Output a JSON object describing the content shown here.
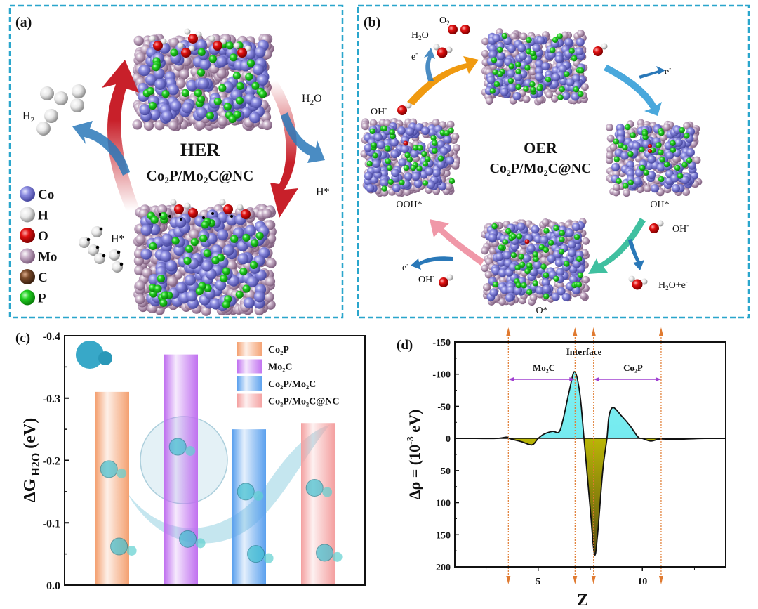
{
  "panel_a": {
    "label": "(a)",
    "title": "HER",
    "catalyst": [
      "Co",
      "2",
      "P/Mo",
      "2",
      "C@NC"
    ],
    "h2_label": [
      "H",
      "2"
    ],
    "h2o_label": [
      "H",
      "2",
      "O"
    ],
    "h_star_right": "H*",
    "h_star_left": "H*",
    "legend": [
      {
        "label": "Co",
        "color": "#7f7fd6"
      },
      {
        "label": "H",
        "color": "#e8e8e8"
      },
      {
        "label": "O",
        "color": "#e01010"
      },
      {
        "label": "Mo",
        "color": "#b8a0b8"
      },
      {
        "label": "C",
        "color": "#7a4a2a"
      },
      {
        "label": "P",
        "color": "#22d022"
      }
    ]
  },
  "panel_b": {
    "label": "(b)",
    "title": "OER",
    "catalyst": [
      "Co",
      "2",
      "P/Mo",
      "2",
      "C@NC"
    ],
    "o2_label": [
      "O",
      "2"
    ],
    "h2o_label": [
      "H",
      "2",
      "O"
    ],
    "states": {
      "ooh": "OOH*",
      "oh": "OH*",
      "o": "O*"
    },
    "e_label": [
      "e",
      "-"
    ],
    "oh_minus": [
      "OH",
      "-"
    ],
    "h2o_e": [
      "H",
      "2",
      "O+e",
      "-"
    ]
  },
  "colors": {
    "frame": "#2aa6cc",
    "co": "#7f7fd6",
    "p": "#22d022",
    "mo": "#b8a0b8",
    "o": "#e01010",
    "red_arrow": "#c8202a",
    "blue_arrow": "#2a78b8",
    "orange_arrow": "#f09a10"
  },
  "chart_data": [
    {
      "panel": "(c)",
      "type": "bar",
      "ylabel": [
        "ΔG",
        " H2O",
        " (eV)"
      ],
      "categories": [
        "Co2P",
        "Mo2C",
        "Co2P/Mo2C",
        "Co2P/Mo2C@NC"
      ],
      "legend_labels": [
        "Co₂P",
        "Mo₂C",
        "Co₂P/Mo₂C",
        "Co₂P/Mo₂C@NC"
      ],
      "values": [
        -0.31,
        -0.37,
        -0.25,
        -0.26
      ],
      "colors": [
        "#f4a070",
        "#c070f0",
        "#5aa0ee",
        "#f4a0a0"
      ],
      "ylim": [
        0.0,
        -0.4
      ],
      "yticks": [
        "0.0",
        "-0.1",
        "-0.2",
        "-0.3",
        "-0.4"
      ],
      "legend": "top-right",
      "grid": false
    },
    {
      "panel": "(d)",
      "type": "area",
      "xlabel": "Z",
      "ylabel": [
        "Δρ = (10",
        "-3",
        " eV)"
      ],
      "ylim": [
        -150,
        200
      ],
      "y_inverted": true,
      "xlim": [
        1,
        14
      ],
      "xticks": [
        "5",
        "10"
      ],
      "yticks": [
        "-150",
        "-100",
        "-50",
        "0",
        "50",
        "100",
        "150",
        "200"
      ],
      "x": [
        1,
        2,
        3,
        3.5,
        3.6,
        4.2,
        4.7,
        5.0,
        5.3,
        5.7,
        6.0,
        6.2,
        6.5,
        6.75,
        7.0,
        7.2,
        7.5,
        7.7,
        7.85,
        8.1,
        8.3,
        8.4,
        8.6,
        9.0,
        9.4,
        9.8,
        10.0,
        10.4,
        10.8,
        11.2,
        12,
        13,
        14
      ],
      "y": [
        0,
        0,
        0,
        -2,
        0,
        5,
        10,
        0,
        -7,
        -11,
        -10,
        -30,
        -75,
        -104,
        -70,
        0,
        110,
        180,
        150,
        50,
        0,
        -35,
        -48,
        -35,
        -20,
        -2,
        0,
        4,
        1,
        1,
        1,
        0,
        0
      ],
      "vlines": [
        3.57,
        6.77,
        7.66,
        10.9
      ],
      "annotations": {
        "interface": "Interface",
        "left_region": "Mo₂C",
        "right_region": "Co₂P"
      },
      "fill_colors": {
        "negative": "#80f0f0",
        "positive": "#d8d000"
      },
      "grid": false
    }
  ]
}
